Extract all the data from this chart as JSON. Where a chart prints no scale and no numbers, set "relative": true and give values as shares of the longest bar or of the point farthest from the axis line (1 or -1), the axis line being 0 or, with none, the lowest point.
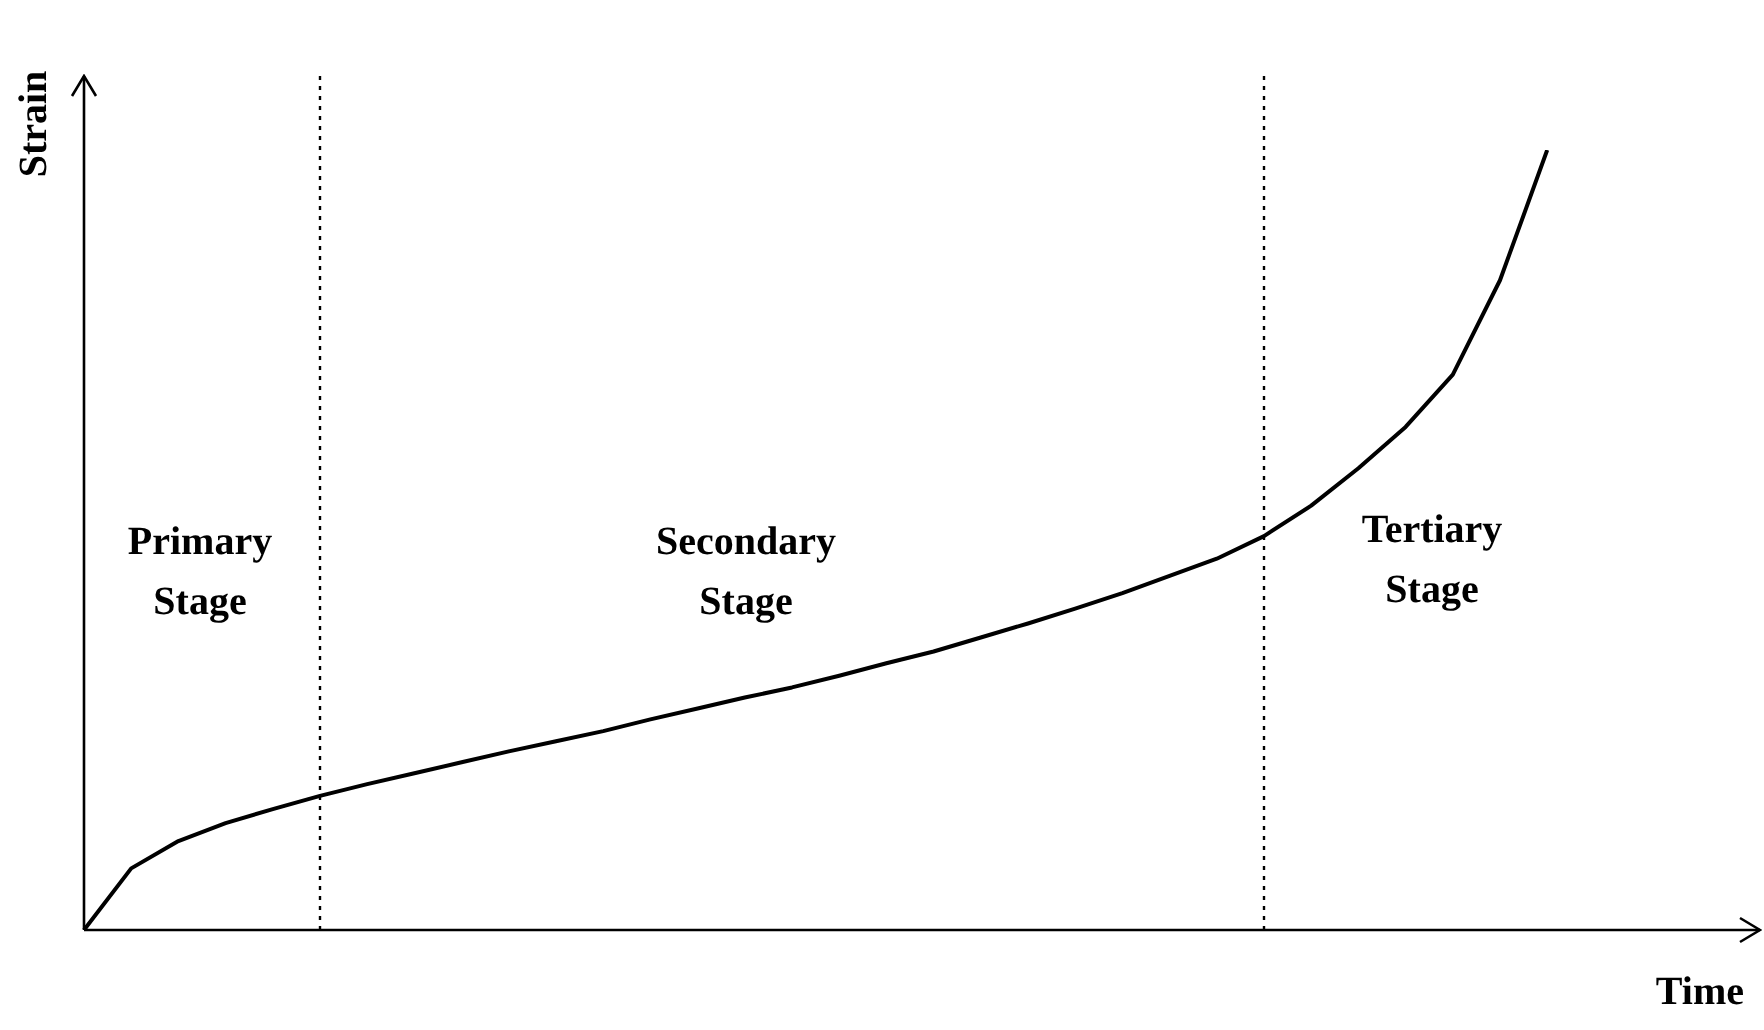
{
  "chart_data": {
    "type": "line",
    "xlabel": "Time",
    "ylabel": "Strain",
    "relative": true,
    "legend": false,
    "marker": "none",
    "line_style": "solid",
    "annotations": [
      "Primary\nStage",
      "Secondary\nStage",
      "Tertiary\nStage"
    ],
    "categories": [
      null,
      null,
      null,
      null,
      null,
      null,
      null,
      null,
      null,
      null,
      null,
      null,
      null,
      null,
      null,
      null,
      null,
      null,
      null,
      null,
      null,
      null,
      null,
      null,
      null,
      null,
      null,
      null,
      null,
      null,
      null,
      null,
      null,
      null,
      null,
      null
    ],
    "series": [
      {
        "color": "#000000",
        "values": [
          0,
          0.079,
          0.114,
          0.137,
          0.155,
          0.172,
          0.187,
          0.201,
          0.215,
          0.229,
          0.242,
          0.255,
          0.27,
          0.284,
          0.298,
          0.311,
          0.326,
          0.342,
          0.357,
          0.375,
          0.393,
          0.412,
          0.432,
          0.454,
          0.476,
          0.505,
          0.544,
          0.592,
          0.645,
          0.712,
          0.833,
          1,
          null,
          null,
          null,
          null
        ]
      }
    ]
  }
}
